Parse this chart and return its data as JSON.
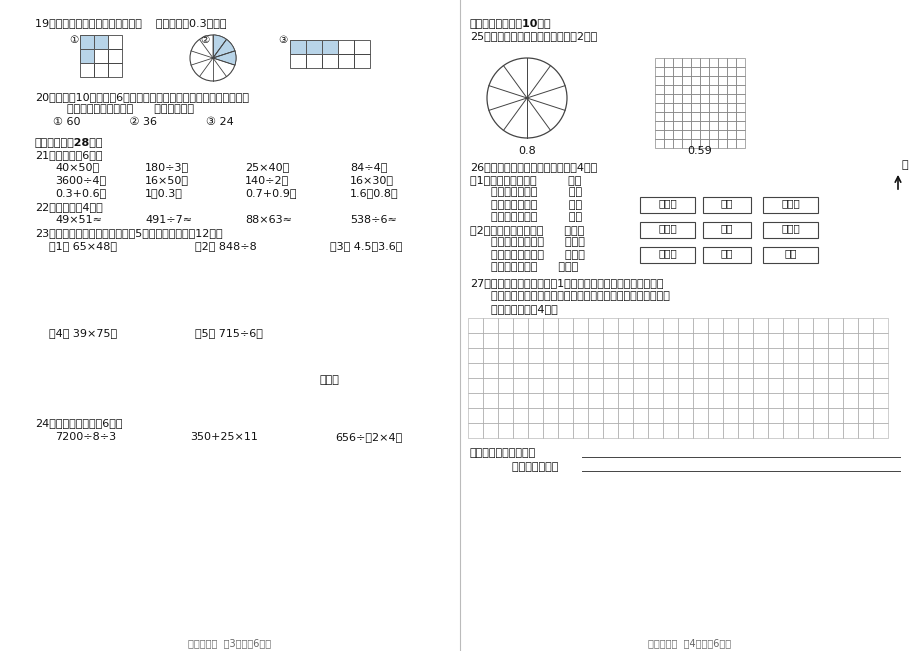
{
  "bg_color": "#ffffff",
  "light_blue": "#b8d4e8",
  "page_left": {
    "q19_text": "19、下面各图中的涂色部分，第（    ）个可以用0.3表示。",
    "q20_line1": "20、在一弥10厘米、剠6厘米的长方形纸上剪下一个最大的正方形，",
    "q20_line2": "    剩下的部分的面积是（      ）平方厘米。",
    "q20_opts": "① 60              ② 36              ③ 24",
    "sec4_title": "四、计算。（28分）",
    "q21_title": "21、口算。（6分）",
    "q21_r1c1": "40×50＝",
    "q21_r1c2": "180÷3＝",
    "q21_r1c3": "25×40＝",
    "q21_r1c4": "84÷4＝",
    "q21_r2c1": "3600÷4＝",
    "q21_r2c2": "16×50＝",
    "q21_r2c3": "140÷2＝",
    "q21_r2c4": "16×30＝",
    "q21_r3c1": "0.3+0.6＝",
    "q21_r3c2": "1－0.3＝",
    "q21_r3c3": "0.7+0.9＝",
    "q21_r3c4": "1.6－0.8＝",
    "q22_title": "22、估算。（4分）",
    "q22_r1c1": "49×51≈",
    "q22_r1c2": "491÷7≈",
    "q22_r1c3": "88×63≈",
    "q22_r1c4": "538÷6≈",
    "q23_title": "23、列绝式计算下面各题，第（5）小题要验算。（12分）",
    "q23_1": "（1） 65×48＝",
    "q23_2": "（2） 848÷8",
    "q23_3": "（3） 4.5－3.6＝",
    "q23_4": "（4） 39×75＝",
    "q23_5": "（5） 715÷6＝",
    "q23_verify": "验算：",
    "q24_title": "24、递等式计算。（6分）",
    "q24_1": "7200÷8÷3",
    "q24_2": "350+25×11",
    "q24_3": "656÷（2×4）",
    "footer_left": "三年级数学  第3页（兲6页）"
  },
  "page_right": {
    "sec5_title": "五、动手操作。（10分）",
    "q25_title": "25、看小数涂上你喜欢的颜色。（2分）",
    "q25_label1": "0.8",
    "q25_label2": "0.59",
    "q26_title": "26、根据左图完成右边的填空。（4分）",
    "q26_1a": "（1）学校的北面是（         ）。",
    "q26_1b": "      学校的东面是（         ）。",
    "q26_1c": "      学校的西面是（         ）。",
    "q26_1d": "      学校的南面是（         ）。",
    "q26_2a": "（2）博物馆在学校的（      ）面。",
    "q26_2b": "      汽车站在学校的（      ）面。",
    "q26_2c": "      少年宫在学校的（      ）面。",
    "q26_2d": "      商场在学校的（      ）面。",
    "box1a": "博物馆",
    "box1b": "医院",
    "box1c": "少年宫",
    "box2a": "电影院",
    "box2b": "学校",
    "box2c": "淡气家",
    "box3a": "汽车站",
    "box3b": "公园",
    "box3c": "商场",
    "north_label": "北",
    "q27_title": "27、下面每个小方格都是边1厘米的正方形，请你在方格纸上分",
    "q27_line2": "      别画一个长方形和一个正方形，并计算它们的面积。（要写出",
    "q27_line3": "      计算过程）。（4分）",
    "q27_footer1": "我画的长方形的面积：",
    "q27_footer2": "        正方形的面积：",
    "footer_right": "三年级数学  第4页（兲6页）"
  }
}
